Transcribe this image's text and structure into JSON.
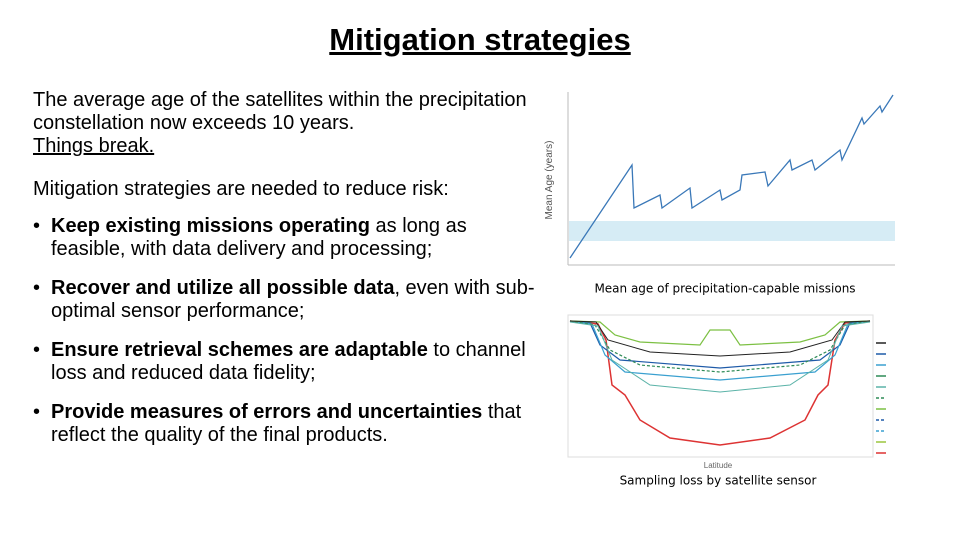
{
  "title": "Mitigation strategies",
  "intro": [
    "The average age of the satellites within the precipitation constellation now exceeds 10 years.",
    "Things break."
  ],
  "lead": "Mitigation strategies are needed to reduce risk:",
  "bullets": [
    {
      "bold": "Keep existing missions operating",
      "rest": " as long as feasible, with data delivery and processing;"
    },
    {
      "bold": "Recover and utilize all possible data",
      "rest": ", even with sub-optimal sensor performance;"
    },
    {
      "bold": "Ensure retrieval schemes are adaptable",
      "rest": " to channel loss and reduced data fidelity;"
    },
    {
      "bold": "Provide measures of errors and uncertainties",
      "rest": " that reflect the quality of the final products."
    }
  ],
  "figures": [
    {
      "caption": "Mean age of precipitation-capable missions",
      "y_label": "Mean Age (years)"
    },
    {
      "caption": "Sampling loss by satellite sensor",
      "x_label": "Latitude"
    }
  ]
}
